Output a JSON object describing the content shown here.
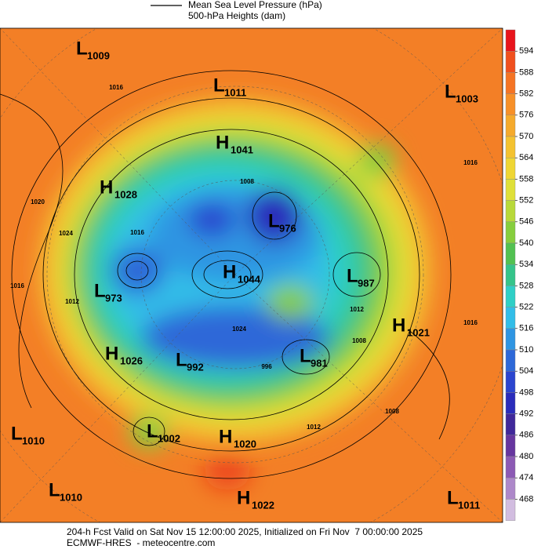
{
  "legend": {
    "line_label": "Mean Sea Level Pressure (hPa)",
    "fill_label": "500-hPa Heights (dam)"
  },
  "centers": [
    {
      "type": "L",
      "value": "1009"
    },
    {
      "type": "L",
      "value": "1011"
    },
    {
      "type": "L",
      "value": "1003"
    },
    {
      "type": "H",
      "value": "1041"
    },
    {
      "type": "H",
      "value": "1028"
    },
    {
      "type": "L",
      "value": "976"
    },
    {
      "type": "H",
      "value": "1044"
    },
    {
      "type": "L",
      "value": "987"
    },
    {
      "type": "L",
      "value": "973"
    },
    {
      "type": "H",
      "value": "1021"
    },
    {
      "type": "H",
      "value": "1026"
    },
    {
      "type": "L",
      "value": "992"
    },
    {
      "type": "L",
      "value": "981"
    },
    {
      "type": "L",
      "value": "1010"
    },
    {
      "type": "L",
      "value": "1002"
    },
    {
      "type": "H",
      "value": "1020"
    },
    {
      "type": "L",
      "value": "1010"
    },
    {
      "type": "H",
      "value": "1022"
    },
    {
      "type": "L",
      "value": "1011"
    }
  ],
  "contour_labels": [
    "1016",
    "1016",
    "1020",
    "1024",
    "1012",
    "1016",
    "1008",
    "1012",
    "1008",
    "1016",
    "1012",
    "1008",
    "1024",
    "996",
    "1016"
  ],
  "colorbar": {
    "ticks": [
      594,
      588,
      582,
      576,
      570,
      564,
      558,
      552,
      546,
      540,
      534,
      528,
      522,
      516,
      510,
      504,
      498,
      492,
      486,
      480,
      474,
      468
    ],
    "colors": [
      "#e8141c",
      "#f0501e",
      "#f57424",
      "#f79028",
      "#f5aa2c",
      "#f4c230",
      "#efd634",
      "#dfe038",
      "#b8d93a",
      "#86ce3e",
      "#52c152",
      "#35c48a",
      "#2fcfc6",
      "#32bde8",
      "#2f95e2",
      "#2d68d8",
      "#2b45cf",
      "#2a2cbb",
      "#40289a",
      "#66369f",
      "#8c5ab4",
      "#ad88c9",
      "#d2bde0"
    ]
  },
  "footer": {
    "line1": "204-h Fcst Valid on Sat Nov 15 12:00:00 2025, Initialized on Fri Nov  7 00:00:00 2025",
    "line2": "ECMWF-HRES  - meteocentre.com"
  }
}
